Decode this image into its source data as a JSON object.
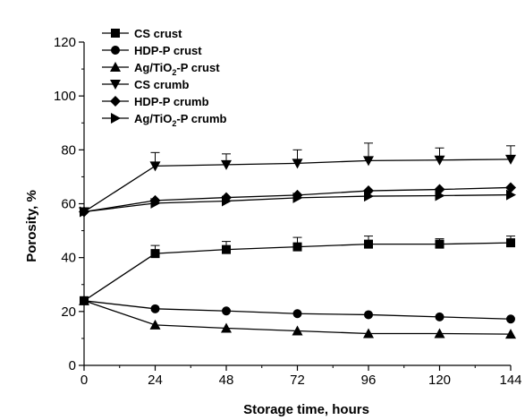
{
  "chart_data": {
    "type": "line",
    "title": "",
    "xlabel": "Storage time, hours",
    "ylabel": "Porosity, %",
    "xlim": [
      0,
      144
    ],
    "ylim": [
      0,
      120
    ],
    "x_ticks": [
      0,
      24,
      48,
      72,
      96,
      120,
      144
    ],
    "y_ticks": [
      0,
      20,
      40,
      60,
      80,
      100,
      120
    ],
    "grid": false,
    "legend_position": "top-left",
    "x": [
      0,
      24,
      48,
      72,
      96,
      120,
      144
    ],
    "series": [
      {
        "name": "CS crust",
        "marker": "square",
        "color": "#000000",
        "values": [
          24,
          41.5,
          43,
          44,
          45,
          45,
          45.5
        ],
        "error": [
          0,
          3,
          3,
          3.5,
          3,
          2,
          2.5
        ]
      },
      {
        "name": "HDP-P crust",
        "marker": "circle",
        "color": "#000000",
        "values": [
          24,
          21,
          20.2,
          19.2,
          18.8,
          18,
          17.2
        ],
        "error": [
          0,
          0,
          0,
          0,
          0,
          0,
          0
        ]
      },
      {
        "name": "Ag/TiO₂-P crust",
        "name_base": "Ag/TiO",
        "name_sub": "2",
        "name_rest": "-P crust",
        "marker": "triangle-up",
        "color": "#000000",
        "values": [
          24,
          15,
          13.8,
          12.8,
          11.8,
          11.8,
          11.6
        ],
        "error": [
          0,
          0,
          0,
          0,
          0,
          0,
          0
        ]
      },
      {
        "name": "CS crumb",
        "marker": "triangle-down",
        "color": "#000000",
        "values": [
          57,
          74,
          74.5,
          75,
          76,
          76.2,
          76.5
        ],
        "error": [
          0,
          5,
          4,
          5,
          6.5,
          4.5,
          5
        ]
      },
      {
        "name": "HDP-P crumb",
        "marker": "diamond",
        "color": "#000000",
        "values": [
          57,
          61.2,
          62.3,
          63.2,
          64.8,
          65.3,
          66
        ],
        "error": [
          0,
          0,
          0,
          0,
          0,
          0,
          0
        ]
      },
      {
        "name": "Ag/TiO₂-P crumb",
        "name_base": "Ag/TiO",
        "name_sub": "2",
        "name_rest": "-P crumb",
        "marker": "triangle-right",
        "color": "#000000",
        "values": [
          57,
          60.2,
          61,
          62.2,
          62.8,
          63,
          63.3
        ],
        "error": [
          0,
          0,
          0,
          0,
          0,
          0,
          0
        ]
      }
    ]
  }
}
